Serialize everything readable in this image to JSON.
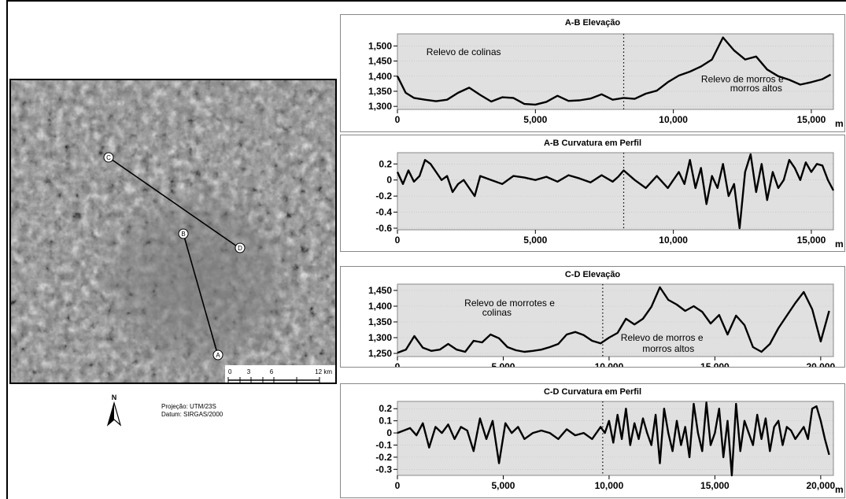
{
  "map": {
    "points": [
      "A",
      "B",
      "C",
      "D"
    ],
    "scalebar": {
      "labels": [
        "0",
        "3",
        "6",
        "12 km"
      ]
    },
    "north_label": "N",
    "projection": "Projeção: UTM/23S",
    "datum": "Datum: SIRGAS/2000",
    "icons": [
      "north-arrow-icon"
    ]
  },
  "chart_data": [
    {
      "type": "line",
      "title": "A-B Elevação",
      "xunit": "m",
      "xlim": [
        0,
        15800
      ],
      "ylim": [
        1290,
        1540
      ],
      "xticks": [
        0,
        5000,
        10000,
        15000
      ],
      "xtick_labels": [
        "0",
        "5,000",
        "10,000",
        "15,000"
      ],
      "yticks": [
        1300,
        1350,
        1400,
        1450,
        1500
      ],
      "ytick_labels": [
        "1,300",
        "1,350",
        "1,400",
        "1,450",
        "1,500"
      ],
      "divider_x": 8200,
      "annotations": [
        {
          "text": "Relevo de colinas",
          "x": 2400,
          "y": 1470
        },
        {
          "text": "Relevo de morros e",
          "x": 12500,
          "y": 1380
        },
        {
          "text": "morros altos",
          "x": 13000,
          "y": 1350
        }
      ],
      "x": [
        0,
        300,
        600,
        1000,
        1400,
        1800,
        2200,
        2600,
        3000,
        3400,
        3800,
        4200,
        4600,
        5000,
        5400,
        5800,
        6200,
        6600,
        7000,
        7400,
        7800,
        8200,
        8600,
        9000,
        9400,
        9800,
        10200,
        10600,
        11000,
        11400,
        11800,
        12200,
        12600,
        13000,
        13400,
        13800,
        14200,
        14600,
        15000,
        15400,
        15700
      ],
      "y": [
        1400,
        1345,
        1328,
        1322,
        1317,
        1322,
        1345,
        1362,
        1338,
        1316,
        1330,
        1328,
        1308,
        1306,
        1315,
        1335,
        1318,
        1320,
        1326,
        1340,
        1322,
        1328,
        1325,
        1342,
        1352,
        1380,
        1402,
        1415,
        1432,
        1455,
        1528,
        1485,
        1455,
        1465,
        1422,
        1400,
        1388,
        1372,
        1380,
        1390,
        1405
      ]
    },
    {
      "type": "line",
      "title": "A-B Curvatura em Perfil",
      "xunit": "m",
      "xlim": [
        0,
        15800
      ],
      "ylim": [
        -0.62,
        0.34
      ],
      "xticks": [
        0,
        5000,
        10000,
        15000
      ],
      "xtick_labels": [
        "0",
        "5,000",
        "10,000",
        "15,000"
      ],
      "yticks": [
        -0.6,
        -0.4,
        -0.2,
        0,
        0.2
      ],
      "ytick_labels": [
        "-0.6",
        "-0.4",
        "-0.2",
        "0",
        "0.2"
      ],
      "divider_x": 8200,
      "x": [
        0,
        200,
        400,
        600,
        800,
        1000,
        1200,
        1400,
        1600,
        1800,
        2000,
        2200,
        2400,
        2600,
        2800,
        3000,
        3400,
        3800,
        4200,
        4600,
        5000,
        5400,
        5800,
        6200,
        6600,
        7000,
        7400,
        7800,
        8000,
        8200,
        8600,
        9000,
        9400,
        9800,
        10000,
        10200,
        10400,
        10600,
        10800,
        11000,
        11200,
        11400,
        11600,
        11800,
        12000,
        12200,
        12400,
        12600,
        12800,
        13000,
        13200,
        13400,
        13600,
        13800,
        14000,
        14200,
        14400,
        14600,
        14800,
        15000,
        15200,
        15400,
        15600,
        15800
      ],
      "y": [
        0.1,
        -0.05,
        0.12,
        -0.02,
        0.05,
        0.25,
        0.2,
        0.1,
        0.0,
        0.05,
        -0.15,
        -0.05,
        0.0,
        -0.1,
        -0.2,
        0.05,
        0.0,
        -0.05,
        0.05,
        0.03,
        0.0,
        0.04,
        -0.02,
        0.06,
        0.02,
        -0.03,
        0.06,
        -0.02,
        0.04,
        0.12,
        0.0,
        -0.1,
        0.05,
        -0.1,
        0.0,
        0.1,
        -0.05,
        0.25,
        -0.1,
        0.15,
        -0.3,
        0.05,
        -0.1,
        0.2,
        -0.2,
        -0.05,
        -0.6,
        0.1,
        0.32,
        -0.15,
        0.2,
        -0.25,
        0.1,
        -0.1,
        0.0,
        0.25,
        0.15,
        0.0,
        0.22,
        0.1,
        0.2,
        0.18,
        0.0,
        -0.13
      ]
    },
    {
      "type": "line",
      "title": "C-D Elevação",
      "xunit": "m",
      "xlim": [
        0,
        20600
      ],
      "ylim": [
        1240,
        1470
      ],
      "xticks": [
        0,
        5000,
        10000,
        15000,
        20000
      ],
      "xtick_labels": [
        "0",
        "5,000",
        "10,000",
        "15,000",
        "20,000"
      ],
      "yticks": [
        1250,
        1300,
        1350,
        1400,
        1450
      ],
      "ytick_labels": [
        "1,250",
        "1,300",
        "1,350",
        "1,400",
        "1,450"
      ],
      "divider_x": 9700,
      "annotations": [
        {
          "text": "Relevo de morrotes e",
          "x": 5300,
          "y": 1400
        },
        {
          "text": "colinas",
          "x": 4700,
          "y": 1370
        },
        {
          "text": "Relevo de morros e",
          "x": 12500,
          "y": 1290
        },
        {
          "text": "morros altos",
          "x": 12800,
          "y": 1255
        }
      ],
      "x": [
        0,
        400,
        800,
        1200,
        1600,
        2000,
        2400,
        2800,
        3200,
        3600,
        4000,
        4400,
        4800,
        5200,
        5600,
        6000,
        6400,
        6800,
        7200,
        7600,
        8000,
        8400,
        8800,
        9200,
        9600,
        10000,
        10400,
        10800,
        11200,
        11600,
        12000,
        12400,
        12800,
        13200,
        13600,
        14000,
        14400,
        14800,
        15200,
        15600,
        16000,
        16400,
        16800,
        17200,
        17600,
        18000,
        18400,
        18800,
        19200,
        19600,
        20000,
        20400
      ],
      "y": [
        1252,
        1262,
        1305,
        1268,
        1258,
        1262,
        1280,
        1262,
        1255,
        1290,
        1285,
        1310,
        1298,
        1270,
        1260,
        1255,
        1258,
        1262,
        1270,
        1280,
        1310,
        1318,
        1308,
        1290,
        1282,
        1300,
        1315,
        1360,
        1342,
        1360,
        1398,
        1460,
        1420,
        1405,
        1385,
        1400,
        1382,
        1345,
        1372,
        1310,
        1370,
        1340,
        1270,
        1255,
        1280,
        1330,
        1370,
        1410,
        1445,
        1390,
        1288,
        1385
      ]
    },
    {
      "type": "line",
      "title": "C-D Curvatura em Perfil",
      "xunit": "m",
      "xlim": [
        0,
        20600
      ],
      "ylim": [
        -0.35,
        0.26
      ],
      "xticks": [
        0,
        5000,
        10000,
        15000,
        20000
      ],
      "xtick_labels": [
        "0",
        "5,000",
        "10,000",
        "15,000",
        "20,000"
      ],
      "yticks": [
        -0.3,
        -0.2,
        -0.1,
        0,
        0.1,
        0.2
      ],
      "ytick_labels": [
        "-0.3",
        "-0.2",
        "-0.1",
        "0",
        "0.1",
        "0.2"
      ],
      "divider_x": 9700,
      "x": [
        0,
        300,
        600,
        900,
        1200,
        1500,
        1800,
        2100,
        2400,
        2700,
        3000,
        3300,
        3600,
        3900,
        4200,
        4500,
        4800,
        5100,
        5400,
        5700,
        6000,
        6400,
        6800,
        7200,
        7600,
        8000,
        8400,
        8800,
        9200,
        9600,
        9800,
        10000,
        10200,
        10400,
        10600,
        10800,
        11000,
        11200,
        11400,
        11600,
        11800,
        12000,
        12200,
        12400,
        12600,
        12800,
        13000,
        13200,
        13400,
        13600,
        13800,
        14000,
        14200,
        14400,
        14600,
        14800,
        15000,
        15200,
        15400,
        15600,
        15800,
        16000,
        16200,
        16400,
        16600,
        16800,
        17000,
        17200,
        17400,
        17600,
        17800,
        18000,
        18200,
        18400,
        18600,
        18800,
        19000,
        19200,
        19400,
        19600,
        19800,
        20000,
        20200,
        20400
      ],
      "y": [
        0.0,
        0.02,
        0.04,
        -0.02,
        0.08,
        -0.12,
        0.05,
        0.0,
        0.07,
        -0.05,
        0.05,
        0.02,
        -0.15,
        0.12,
        -0.05,
        0.1,
        -0.25,
        0.08,
        0.0,
        0.05,
        -0.05,
        0.0,
        0.02,
        0.0,
        -0.05,
        0.03,
        -0.02,
        0.0,
        -0.05,
        0.05,
        0.0,
        0.1,
        -0.08,
        0.15,
        -0.05,
        0.2,
        -0.1,
        0.08,
        -0.05,
        0.12,
        0.0,
        -0.1,
        0.15,
        -0.25,
        0.2,
        0.0,
        -0.15,
        0.1,
        -0.1,
        0.05,
        -0.2,
        0.24,
        0.0,
        -0.15,
        0.25,
        -0.1,
        0.0,
        0.2,
        -0.2,
        0.1,
        -0.35,
        0.24,
        -0.15,
        0.1,
        0.0,
        -0.1,
        0.15,
        -0.05,
        0.12,
        -0.15,
        0.05,
        0.1,
        -0.1,
        0.05,
        0.02,
        -0.05,
        0.0,
        0.05,
        -0.05,
        0.2,
        0.22,
        0.1,
        -0.05,
        -0.18
      ]
    }
  ]
}
